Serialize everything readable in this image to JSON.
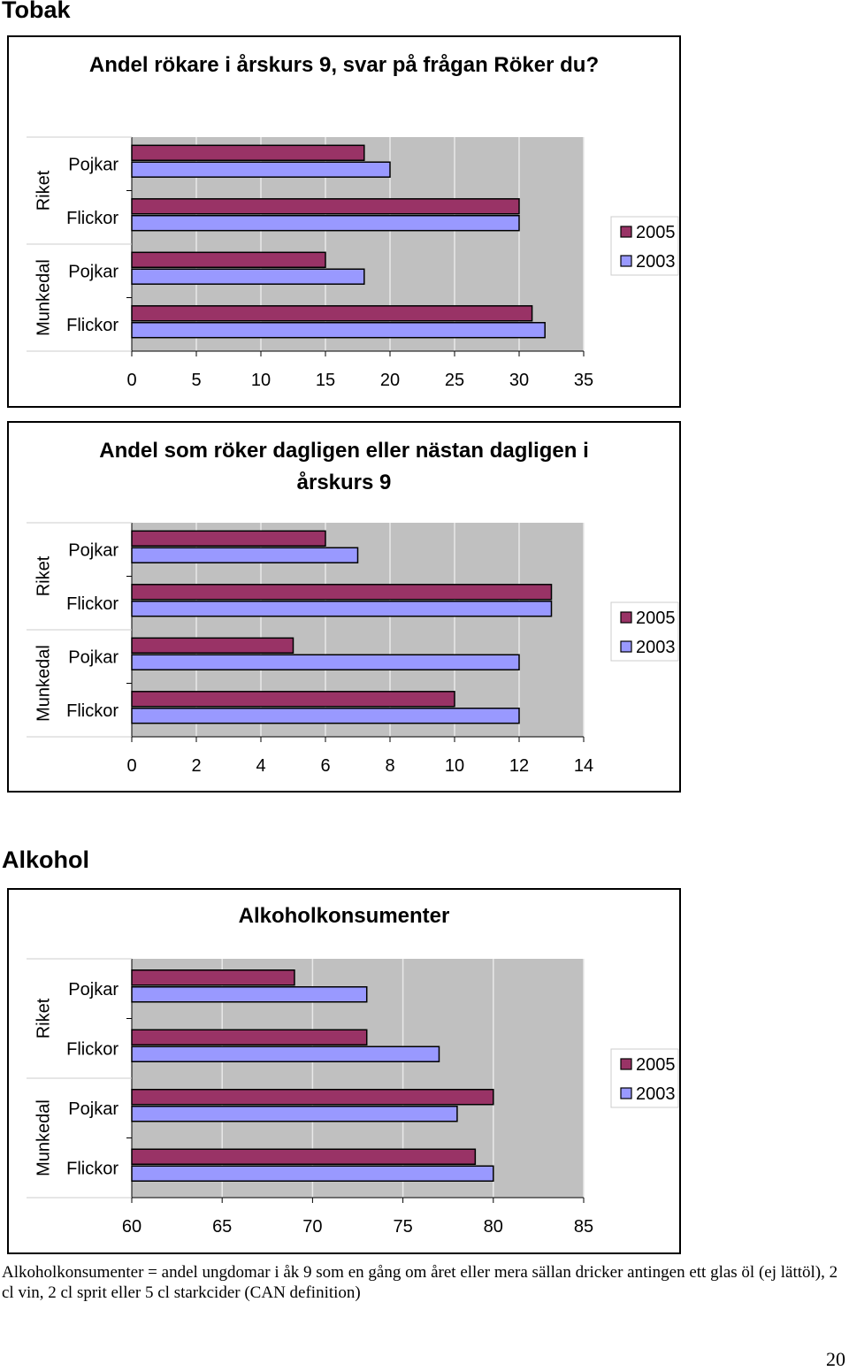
{
  "page": {
    "section_tobak": "Tobak",
    "section_alkohol": "Alkohol",
    "footnote": "Alkoholkonsumenter = andel ungdomar i åk 9 som en gång om året eller mera sällan dricker antingen ett glas öl (ej lättöl), 2 cl vin, 2 cl sprit eller 5 cl starkcider (CAN definition)",
    "page_number": "20"
  },
  "colors": {
    "series_2005": "#993366",
    "series_2003": "#9999ff",
    "plot_bg": "#c0c0c0",
    "grid": "#e8e8e8"
  },
  "chart_data": [
    {
      "type": "bar",
      "orientation": "horizontal",
      "title": "Andel rökare i årskurs 9, svar på frågan  Röker du?",
      "groups": [
        "Riket",
        "Munkedal"
      ],
      "categories": [
        "Pojkar",
        "Flickor",
        "Pojkar",
        "Flickor"
      ],
      "series": [
        {
          "name": "2005",
          "values": [
            18,
            30,
            15,
            31
          ]
        },
        {
          "name": "2003",
          "values": [
            20,
            30,
            18,
            32
          ]
        }
      ],
      "xlim": [
        0,
        35
      ],
      "xticks": [
        0,
        5,
        10,
        15,
        20,
        25,
        30,
        35
      ],
      "grid": true,
      "legend": "right"
    },
    {
      "type": "bar",
      "orientation": "horizontal",
      "title": "Andel som röker dagligen eller nästan dagligen i årskurs 9",
      "groups": [
        "Riket",
        "Munkedal"
      ],
      "categories": [
        "Pojkar",
        "Flickor",
        "Pojkar",
        "Flickor"
      ],
      "series": [
        {
          "name": "2005",
          "values": [
            6,
            13,
            5,
            10
          ]
        },
        {
          "name": "2003",
          "values": [
            7,
            13,
            12,
            12
          ]
        }
      ],
      "xlim": [
        0,
        14
      ],
      "xticks": [
        0,
        2,
        4,
        6,
        8,
        10,
        12,
        14
      ],
      "grid": true,
      "legend": "right"
    },
    {
      "type": "bar",
      "orientation": "horizontal",
      "title": "Alkoholkonsumenter",
      "groups": [
        "Riket",
        "Munkedal"
      ],
      "categories": [
        "Pojkar",
        "Flickor",
        "Pojkar",
        "Flickor"
      ],
      "series": [
        {
          "name": "2005",
          "values": [
            69,
            73,
            80,
            79
          ]
        },
        {
          "name": "2003",
          "values": [
            73,
            77,
            78,
            80
          ]
        }
      ],
      "xlim": [
        60,
        85
      ],
      "xticks": [
        60,
        65,
        70,
        75,
        80,
        85
      ],
      "grid": true,
      "legend": "right"
    }
  ]
}
